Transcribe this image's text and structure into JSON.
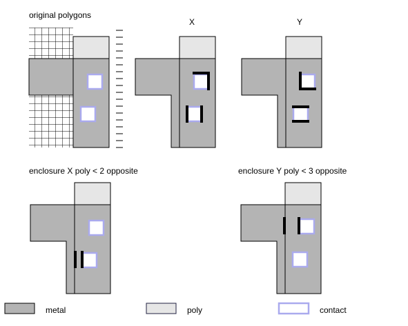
{
  "panels": {
    "original": "original polygons",
    "x": "X",
    "y": "Y",
    "enclosure_x": "enclosure X poly < 2 opposite",
    "enclosure_y": "enclosure Y poly < 3 opposite"
  },
  "legend": {
    "metal": "metal",
    "poly": "poly",
    "contact": "contact"
  },
  "colors": {
    "metal": "#b4b4b4",
    "poly": "#e6e6e6",
    "contact": "#aaaaee",
    "edge": "#000000"
  }
}
